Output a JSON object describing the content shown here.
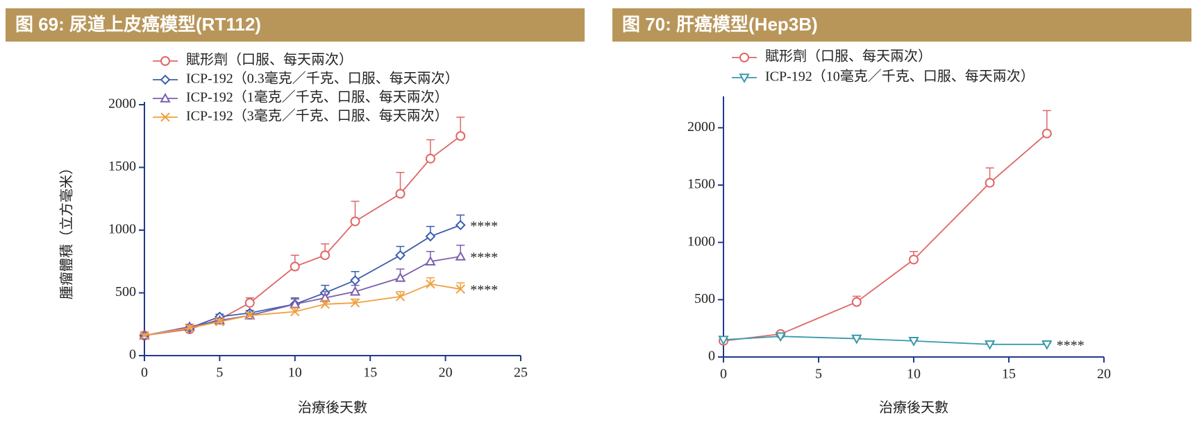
{
  "chart_data": [
    {
      "type": "line",
      "title": "图 69: 尿道上皮癌模型(RT112)",
      "x_label": "治療後天數",
      "y_label": "腫瘤體積（立方毫米）",
      "xlim": [
        0,
        25
      ],
      "xticks": [
        0,
        5,
        10,
        15,
        20,
        25
      ],
      "ylim": [
        0,
        2000
      ],
      "yticks": [
        0,
        500,
        1000,
        1500,
        2000
      ],
      "x": [
        0,
        3,
        5,
        7,
        10,
        12,
        14,
        17,
        19,
        21
      ],
      "series": [
        {
          "name": "賦形劑（口服、每天兩次）",
          "color": "#e06666",
          "marker": "circle",
          "values": [
            160,
            210,
            290,
            420,
            710,
            800,
            1070,
            1290,
            1570,
            1750
          ],
          "errors": [
            10,
            20,
            20,
            40,
            90,
            90,
            160,
            170,
            150,
            150
          ]
        },
        {
          "name": "ICP-192（0.3毫克／千克、口服、每天兩次）",
          "color": "#3a5fad",
          "marker": "diamond",
          "values": [
            160,
            220,
            310,
            340,
            410,
            500,
            600,
            800,
            950,
            1040
          ],
          "errors": [
            10,
            20,
            20,
            20,
            50,
            60,
            70,
            70,
            80,
            80
          ],
          "annotation": "****"
        },
        {
          "name": "ICP-192（1毫克／千克、口服、每天兩次）",
          "color": "#7b5fad",
          "marker": "triangle",
          "values": [
            160,
            230,
            280,
            320,
            410,
            460,
            510,
            620,
            750,
            790
          ],
          "errors": [
            10,
            20,
            20,
            20,
            40,
            50,
            50,
            70,
            80,
            90
          ],
          "annotation": "****"
        },
        {
          "name": "ICP-192（3毫克／千克、口服、每天兩次）",
          "color": "#f0a040",
          "marker": "x",
          "values": [
            160,
            220,
            270,
            320,
            350,
            410,
            420,
            470,
            570,
            530
          ],
          "errors": [
            10,
            20,
            20,
            20,
            30,
            30,
            30,
            40,
            50,
            50
          ],
          "annotation": "****"
        }
      ]
    },
    {
      "type": "line",
      "title": "图 70: 肝癌模型(Hep3B)",
      "x_label": "治療後天數",
      "xlim": [
        0,
        20
      ],
      "xticks": [
        0,
        5,
        10,
        15,
        20
      ],
      "ylim": [
        0,
        2250
      ],
      "yticks": [
        0,
        500,
        1000,
        1500,
        2000
      ],
      "x": [
        0,
        3,
        7,
        10,
        14,
        17
      ],
      "series": [
        {
          "name": "賦形劑（口服、每天兩次）",
          "color": "#e06666",
          "marker": "circle",
          "values": [
            140,
            200,
            480,
            850,
            1520,
            1950
          ],
          "errors": [
            10,
            15,
            50,
            70,
            130,
            200
          ]
        },
        {
          "name": "ICP-192（10毫克／千克、口服、每天兩次）",
          "color": "#3a9aa8",
          "marker": "triangle-down",
          "values": [
            150,
            180,
            160,
            140,
            110,
            110
          ],
          "errors": [
            10,
            10,
            10,
            10,
            10,
            10
          ],
          "annotation": "****"
        }
      ]
    }
  ]
}
